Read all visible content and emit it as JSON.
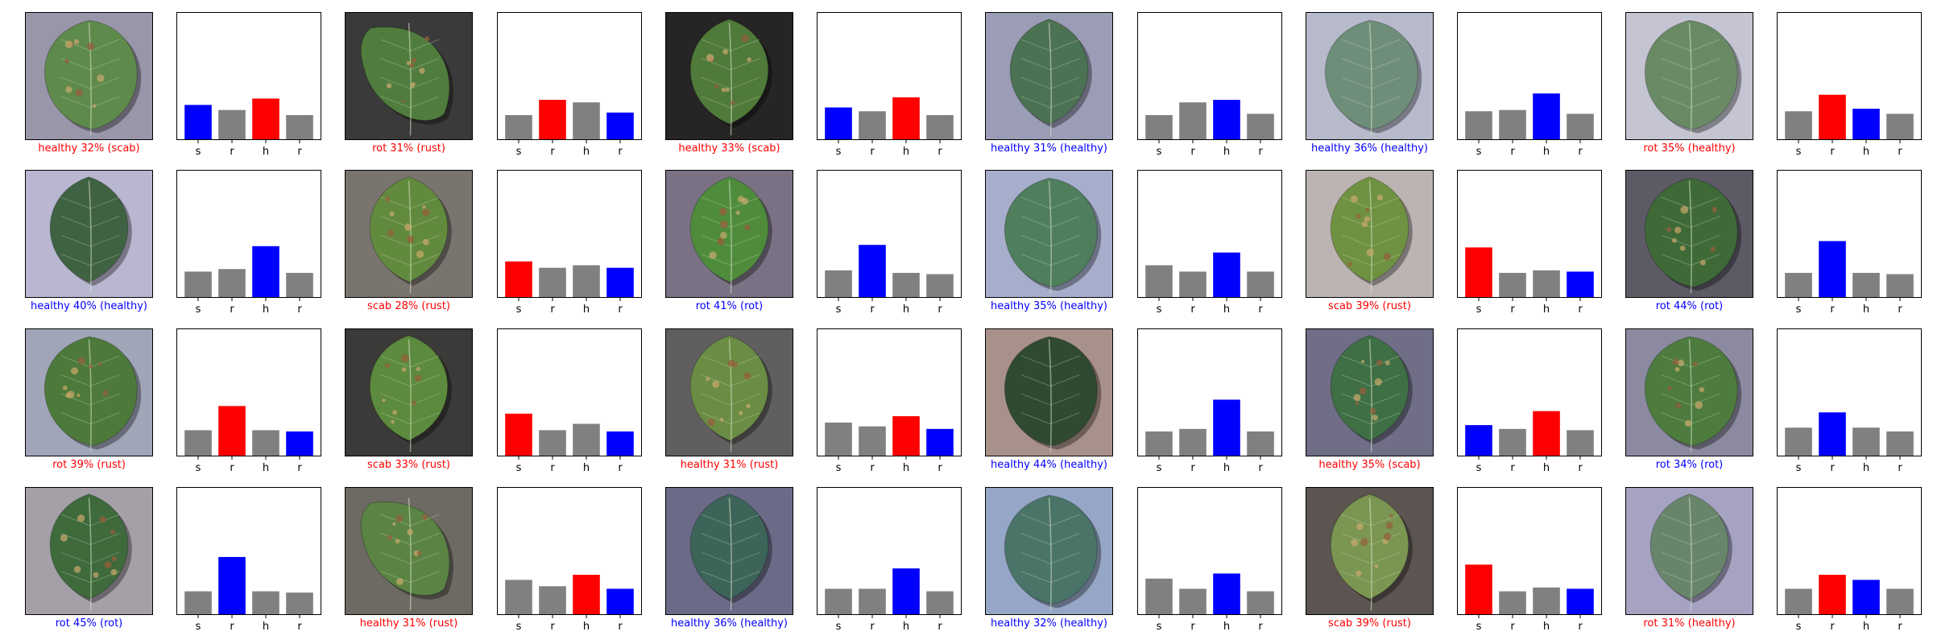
{
  "chart_data": {
    "type": "bar",
    "description": "Grid of 24 leaf-image predictions, each with a 4-bar probability chart",
    "categories": [
      "s",
      "r",
      "h",
      "r"
    ],
    "ylim": [
      0,
      1
    ],
    "grid": false,
    "colors": {
      "correct": "#0000ff",
      "predicted_wrong": "#ff0000",
      "other": "#808080"
    },
    "panels": [
      {
        "caption": "healthy 32% (scab)",
        "caption_color": "#ff0000",
        "values": [
          0.27,
          0.23,
          0.32,
          0.19
        ],
        "bar_colors": [
          "#0000ff",
          "#808080",
          "#ff0000",
          "#808080"
        ]
      },
      {
        "caption": "rot 31% (rust)",
        "caption_color": "#ff0000",
        "values": [
          0.19,
          0.31,
          0.29,
          0.21
        ],
        "bar_colors": [
          "#808080",
          "#ff0000",
          "#808080",
          "#0000ff"
        ]
      },
      {
        "caption": "healthy 33% (scab)",
        "caption_color": "#ff0000",
        "values": [
          0.25,
          0.22,
          0.33,
          0.19
        ],
        "bar_colors": [
          "#0000ff",
          "#808080",
          "#ff0000",
          "#808080"
        ]
      },
      {
        "caption": "healthy 31% (healthy)",
        "caption_color": "#0000ff",
        "values": [
          0.19,
          0.29,
          0.31,
          0.2
        ],
        "bar_colors": [
          "#808080",
          "#808080",
          "#0000ff",
          "#808080"
        ]
      },
      {
        "caption": "healthy 36% (healthy)",
        "caption_color": "#0000ff",
        "values": [
          0.22,
          0.23,
          0.36,
          0.2
        ],
        "bar_colors": [
          "#808080",
          "#808080",
          "#0000ff",
          "#808080"
        ]
      },
      {
        "caption": "rot 35% (healthy)",
        "caption_color": "#ff0000",
        "values": [
          0.22,
          0.35,
          0.24,
          0.2
        ],
        "bar_colors": [
          "#808080",
          "#ff0000",
          "#0000ff",
          "#808080"
        ]
      },
      {
        "caption": "healthy 40% (healthy)",
        "caption_color": "#0000ff",
        "values": [
          0.2,
          0.22,
          0.4,
          0.19
        ],
        "bar_colors": [
          "#808080",
          "#808080",
          "#0000ff",
          "#808080"
        ]
      },
      {
        "caption": "scab 28% (rust)",
        "caption_color": "#ff0000",
        "values": [
          0.28,
          0.23,
          0.25,
          0.23
        ],
        "bar_colors": [
          "#ff0000",
          "#808080",
          "#808080",
          "#0000ff"
        ]
      },
      {
        "caption": "rot 41% (rot)",
        "caption_color": "#0000ff",
        "values": [
          0.21,
          0.41,
          0.19,
          0.18
        ],
        "bar_colors": [
          "#808080",
          "#0000ff",
          "#808080",
          "#808080"
        ]
      },
      {
        "caption": "healthy 35% (healthy)",
        "caption_color": "#0000ff",
        "values": [
          0.25,
          0.2,
          0.35,
          0.2
        ],
        "bar_colors": [
          "#808080",
          "#808080",
          "#0000ff",
          "#808080"
        ]
      },
      {
        "caption": "scab 39% (rust)",
        "caption_color": "#ff0000",
        "values": [
          0.39,
          0.19,
          0.21,
          0.2
        ],
        "bar_colors": [
          "#ff0000",
          "#808080",
          "#808080",
          "#0000ff"
        ]
      },
      {
        "caption": "rot 44% (rot)",
        "caption_color": "#0000ff",
        "values": [
          0.19,
          0.44,
          0.19,
          0.18
        ],
        "bar_colors": [
          "#808080",
          "#0000ff",
          "#808080",
          "#808080"
        ]
      },
      {
        "caption": "rot 39% (rust)",
        "caption_color": "#ff0000",
        "values": [
          0.2,
          0.39,
          0.2,
          0.19
        ],
        "bar_colors": [
          "#808080",
          "#ff0000",
          "#808080",
          "#0000ff"
        ]
      },
      {
        "caption": "scab 33% (rust)",
        "caption_color": "#ff0000",
        "values": [
          0.33,
          0.2,
          0.25,
          0.19
        ],
        "bar_colors": [
          "#ff0000",
          "#808080",
          "#808080",
          "#0000ff"
        ]
      },
      {
        "caption": "healthy 31% (rust)",
        "caption_color": "#ff0000",
        "values": [
          0.26,
          0.23,
          0.31,
          0.21
        ],
        "bar_colors": [
          "#808080",
          "#808080",
          "#ff0000",
          "#0000ff"
        ]
      },
      {
        "caption": "healthy 44% (healthy)",
        "caption_color": "#0000ff",
        "values": [
          0.19,
          0.21,
          0.44,
          0.19
        ],
        "bar_colors": [
          "#808080",
          "#808080",
          "#0000ff",
          "#808080"
        ]
      },
      {
        "caption": "healthy 35% (scab)",
        "caption_color": "#ff0000",
        "values": [
          0.24,
          0.21,
          0.35,
          0.2
        ],
        "bar_colors": [
          "#0000ff",
          "#808080",
          "#ff0000",
          "#808080"
        ]
      },
      {
        "caption": "rot 34% (rot)",
        "caption_color": "#0000ff",
        "values": [
          0.22,
          0.34,
          0.22,
          0.19
        ],
        "bar_colors": [
          "#808080",
          "#0000ff",
          "#808080",
          "#808080"
        ]
      },
      {
        "caption": "rot 45% (rot)",
        "caption_color": "#0000ff",
        "values": [
          0.18,
          0.45,
          0.18,
          0.17
        ],
        "bar_colors": [
          "#808080",
          "#0000ff",
          "#808080",
          "#808080"
        ]
      },
      {
        "caption": "healthy 31% (rust)",
        "caption_color": "#ff0000",
        "values": [
          0.27,
          0.22,
          0.31,
          0.2
        ],
        "bar_colors": [
          "#808080",
          "#808080",
          "#ff0000",
          "#0000ff"
        ]
      },
      {
        "caption": "healthy 36% (healthy)",
        "caption_color": "#0000ff",
        "values": [
          0.2,
          0.2,
          0.36,
          0.18
        ],
        "bar_colors": [
          "#808080",
          "#808080",
          "#0000ff",
          "#808080"
        ]
      },
      {
        "caption": "healthy 32% (healthy)",
        "caption_color": "#0000ff",
        "values": [
          0.28,
          0.2,
          0.32,
          0.18
        ],
        "bar_colors": [
          "#808080",
          "#808080",
          "#0000ff",
          "#808080"
        ]
      },
      {
        "caption": "scab 39% (rust)",
        "caption_color": "#ff0000",
        "values": [
          0.39,
          0.18,
          0.21,
          0.2
        ],
        "bar_colors": [
          "#ff0000",
          "#808080",
          "#808080",
          "#0000ff"
        ]
      },
      {
        "caption": "rot 31% (healthy)",
        "caption_color": "#ff0000",
        "values": [
          0.2,
          0.31,
          0.27,
          0.2
        ],
        "bar_colors": [
          "#808080",
          "#ff0000",
          "#0000ff",
          "#808080"
        ]
      }
    ]
  },
  "leaf_photos": [
    {
      "bg": "#9a96aa",
      "leaf": "#5e8a4c",
      "spots": true,
      "shape": "wide"
    },
    {
      "bg": "#3a3a3a",
      "leaf": "#507d3e",
      "spots": true,
      "shape": "curled"
    },
    {
      "bg": "#262424",
      "leaf": "#4f7a3a",
      "spots": true,
      "shape": "oval"
    },
    {
      "bg": "#9b9cb6",
      "leaf": "#4b7253",
      "spots": false,
      "shape": "oval"
    },
    {
      "bg": "#b7bacb",
      "leaf": "#6e8e7a",
      "spots": false,
      "shape": "wide"
    },
    {
      "bg": "#c4c4d2",
      "leaf": "#6a8a66",
      "spots": false,
      "shape": "wide"
    },
    {
      "bg": "#b8b6d0",
      "leaf": "#3f6242",
      "spots": false,
      "shape": "oval"
    },
    {
      "bg": "#7a746f",
      "leaf": "#628a3e",
      "spots": true,
      "shape": "oval"
    },
    {
      "bg": "#7a7284",
      "leaf": "#4e8c3c",
      "spots": true,
      "shape": "oval"
    },
    {
      "bg": "#a7aecc",
      "leaf": "#4f7e5c",
      "spots": false,
      "shape": "wide"
    },
    {
      "bg": "#bcb4b2",
      "leaf": "#6f9142",
      "spots": true,
      "shape": "oval"
    },
    {
      "bg": "#5d5a66",
      "leaf": "#3f6a38",
      "spots": true,
      "shape": "wide"
    },
    {
      "bg": "#a0a5b8",
      "leaf": "#4d7a3a",
      "spots": true,
      "shape": "wide"
    },
    {
      "bg": "#3c3a38",
      "leaf": "#5c8a3e",
      "spots": true,
      "shape": "oval"
    },
    {
      "bg": "#615e60",
      "leaf": "#6a8c44",
      "spots": true,
      "shape": "oval"
    },
    {
      "bg": "#a8918a",
      "leaf": "#2f4a30",
      "spots": false,
      "shape": "wide"
    },
    {
      "bg": "#6f6e86",
      "leaf": "#3f6f45",
      "spots": true,
      "shape": "oval"
    },
    {
      "bg": "#8c8aa0",
      "leaf": "#4d7c3e",
      "spots": true,
      "shape": "wide"
    },
    {
      "bg": "#a5a0a8",
      "leaf": "#3e6a3c",
      "spots": true,
      "shape": "oval"
    },
    {
      "bg": "#6c6a62",
      "leaf": "#5b8444",
      "spots": true,
      "shape": "curled"
    },
    {
      "bg": "#6b6b88",
      "leaf": "#3c6458",
      "spots": false,
      "shape": "oval"
    },
    {
      "bg": "#96a6c6",
      "leaf": "#4a7468",
      "spots": false,
      "shape": "wide"
    },
    {
      "bg": "#5b5450",
      "leaf": "#7a9652",
      "spots": true,
      "shape": "oval"
    },
    {
      "bg": "#a5a2c2",
      "leaf": "#68856b",
      "spots": false,
      "shape": "oval"
    }
  ]
}
